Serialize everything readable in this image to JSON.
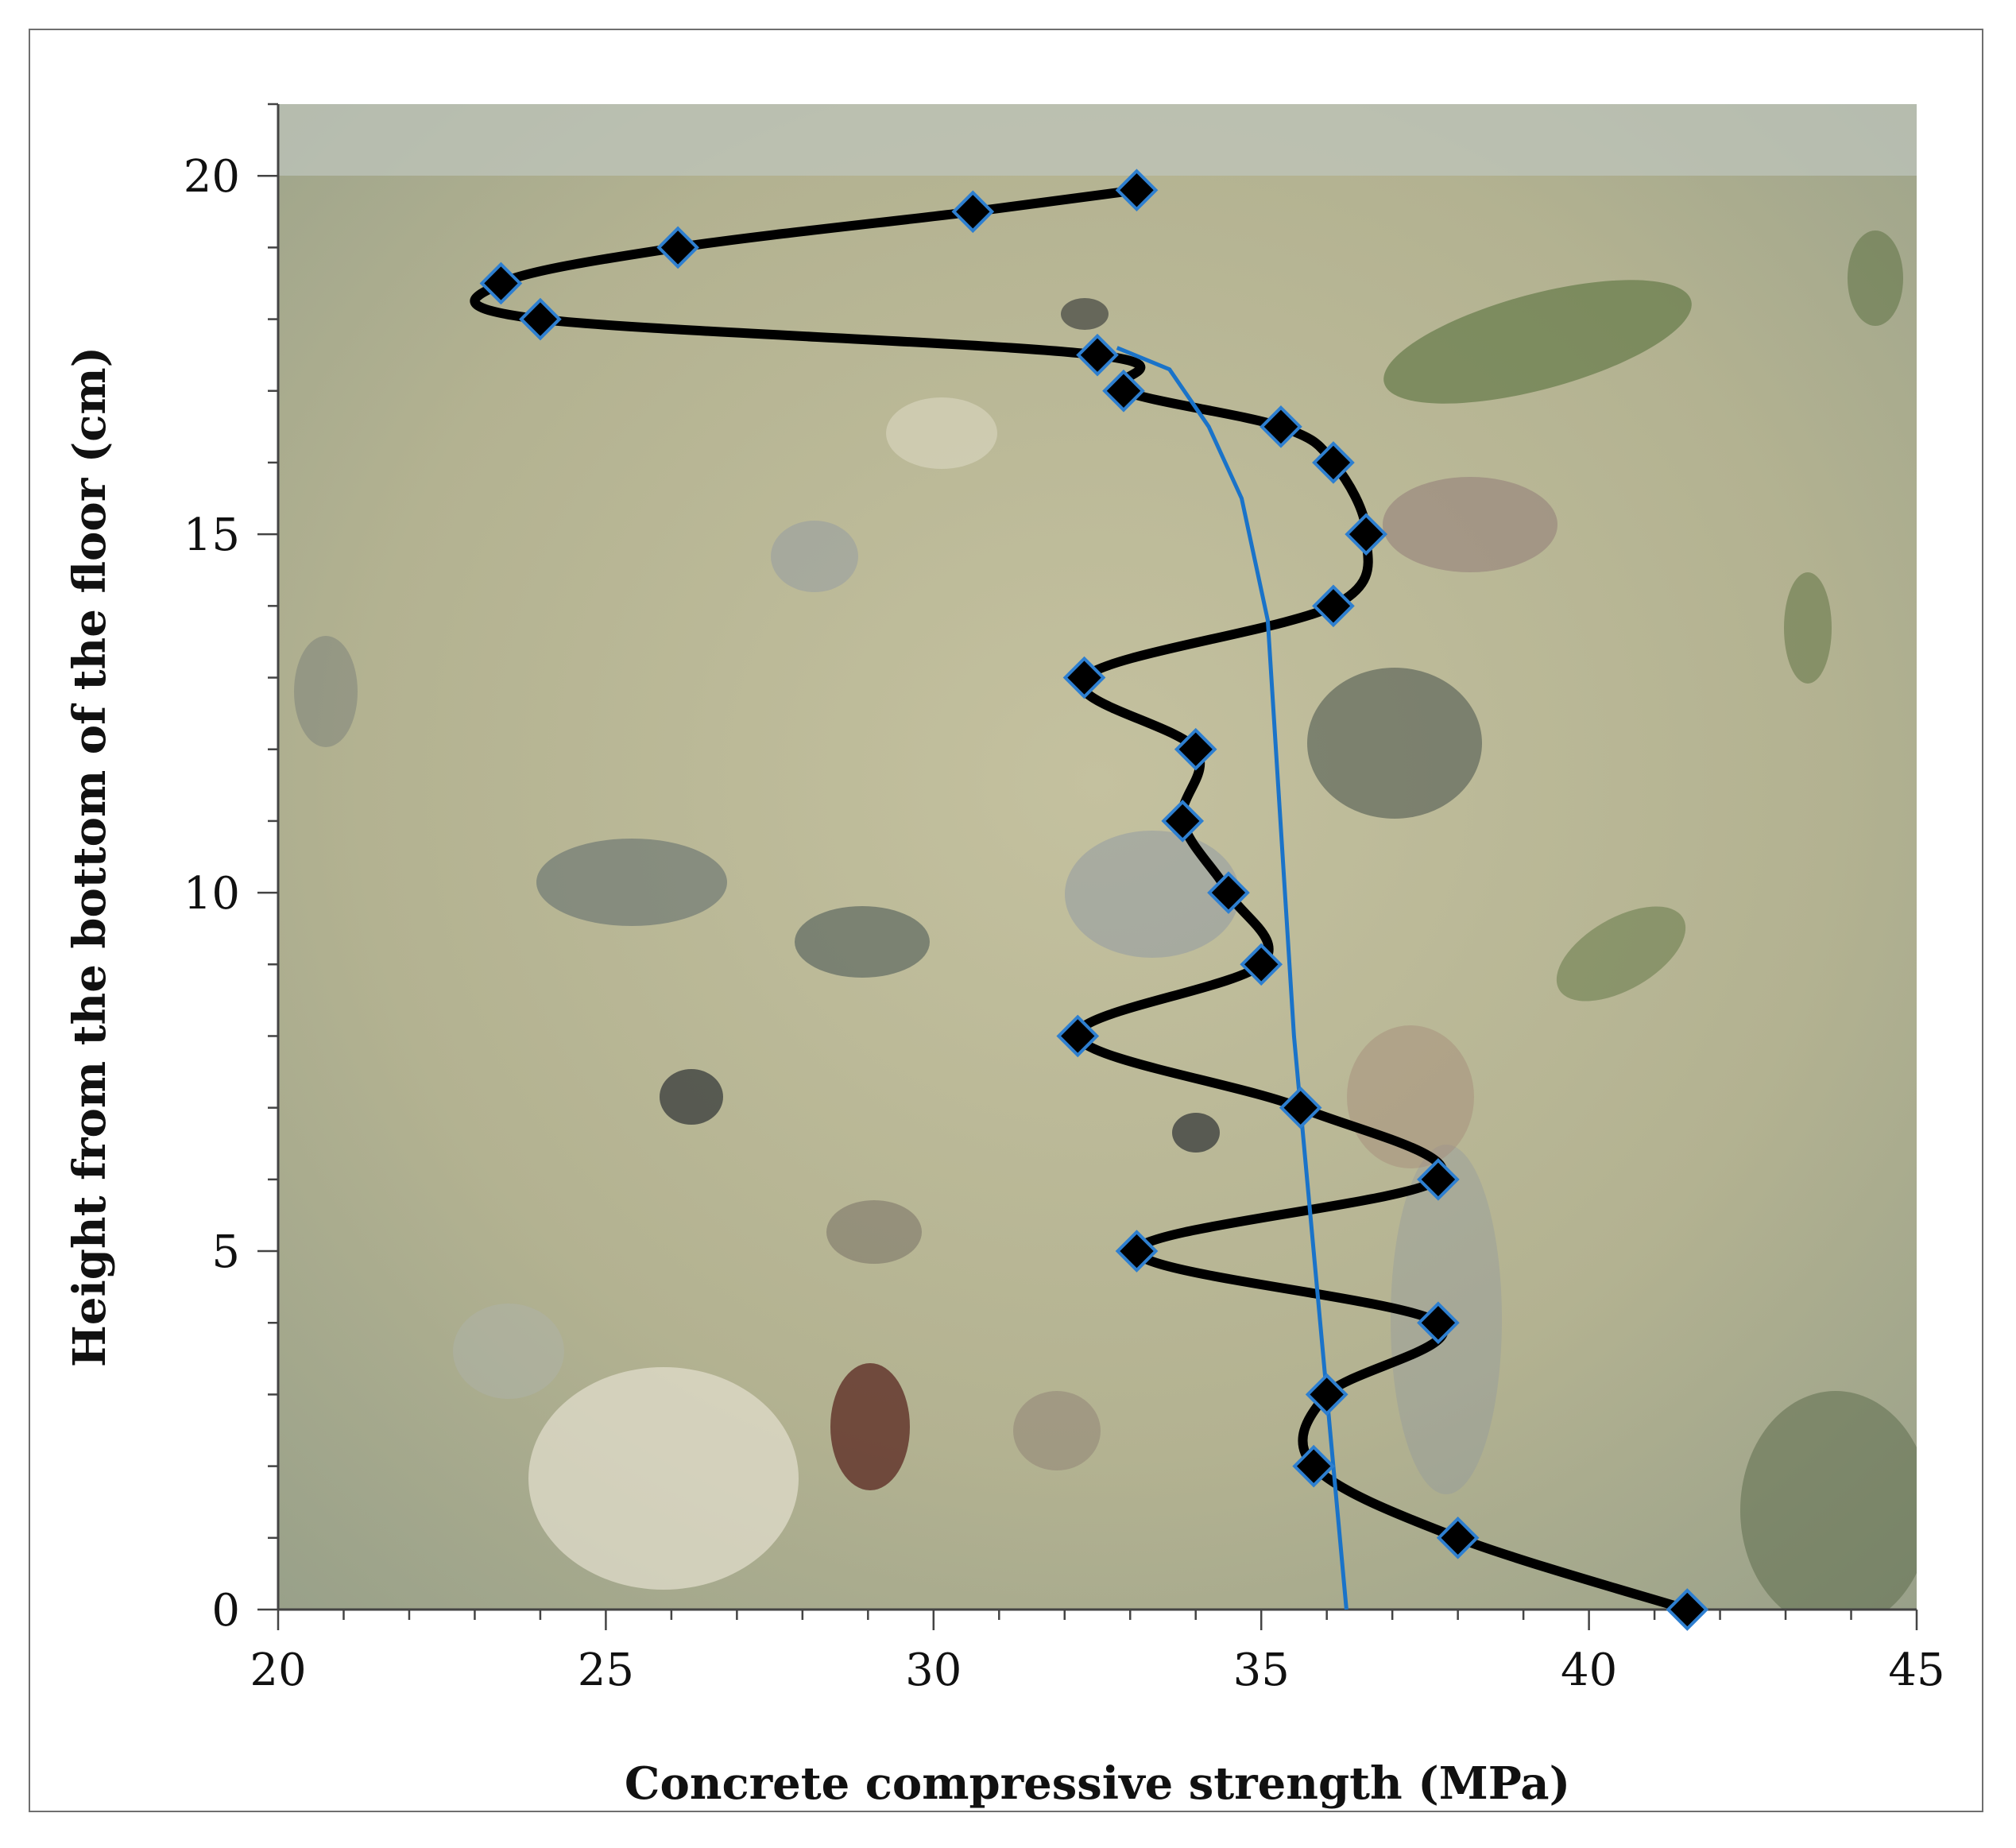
{
  "chart_data": {
    "type": "line",
    "title": "",
    "xlabel": "Concrete compressive strength (MPa)",
    "ylabel": "Height from the bottom of the floor (cm)",
    "xlim": [
      20,
      45
    ],
    "ylim": [
      0,
      21
    ],
    "xticks": [
      "20",
      "25",
      "30",
      "35",
      "40",
      "45"
    ],
    "yticks": [
      "0",
      "5",
      "10",
      "15",
      "20"
    ],
    "grid": false,
    "legend": "none",
    "background": "photograph of concrete cross-section",
    "series": [
      {
        "style": "thick black smoothed line with black diamond markers outlined in blue",
        "color": "#000000",
        "marker_outline": "#2e7fd0",
        "x": [
          41.5,
          38.0,
          35.8,
          36.0,
          37.7,
          33.1,
          37.7,
          35.6,
          32.2,
          35.0,
          34.5,
          33.8,
          34.0,
          32.3,
          36.1,
          36.6,
          36.1,
          35.3,
          32.9,
          32.5,
          24.0,
          23.4,
          26.1,
          30.6,
          33.1
        ],
        "y": [
          0,
          1,
          2,
          3,
          4,
          5,
          6,
          7,
          8,
          9,
          10,
          11,
          12,
          13,
          14,
          15,
          16,
          16.5,
          17,
          17.5,
          18,
          18.5,
          19,
          19.5,
          19.8
        ]
      },
      {
        "style": "thin blue trend line",
        "color": "#1a73c9",
        "x": [
          36.3,
          35.9,
          35.5,
          35.1,
          34.7,
          34.2,
          33.6,
          32.8
        ],
        "y": [
          0,
          4,
          8,
          13.8,
          15.5,
          16.5,
          17.3,
          17.6
        ]
      }
    ]
  }
}
